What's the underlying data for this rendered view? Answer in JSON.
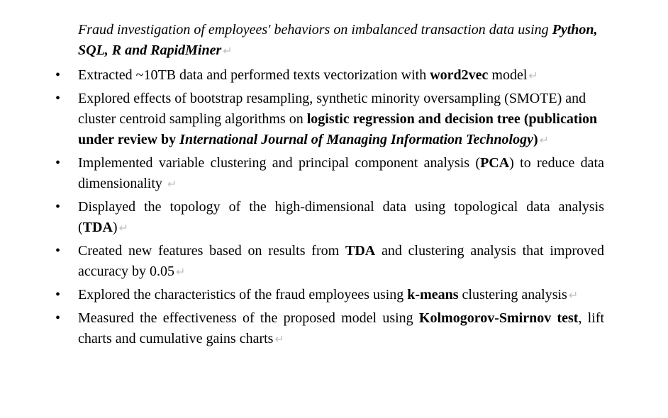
{
  "title": {
    "intro_italic": "Fraud investigation of employees' behaviors on imbalanced transaction data using ",
    "tools_bold_italic": "Python, SQL, R and RapidMiner"
  },
  "bullets": [
    {
      "justify": false,
      "runs": [
        {
          "style": "normal",
          "text": "Extracted ~10TB data and performed texts vectorization with "
        },
        {
          "style": "bold",
          "text": "word2vec"
        },
        {
          "style": "normal",
          "text": " model"
        }
      ]
    },
    {
      "justify": false,
      "runs": [
        {
          "style": "normal",
          "text": "Explored effects of bootstrap resampling, synthetic minority oversampling (SMOTE) and cluster centroid sampling algorithms on "
        },
        {
          "style": "bold",
          "text": "logistic regression and decision tree (publication under review by "
        },
        {
          "style": "bold-italic",
          "text": "International Journal of Managing Information Technology"
        },
        {
          "style": "bold",
          "text": ")"
        }
      ]
    },
    {
      "justify": true,
      "runs": [
        {
          "style": "normal",
          "text": "Implemented variable clustering and principal component analysis ("
        },
        {
          "style": "bold",
          "text": "PCA"
        },
        {
          "style": "normal",
          "text": ") to reduce data dimensionality "
        }
      ]
    },
    {
      "justify": true,
      "runs": [
        {
          "style": "normal",
          "text": "Displayed the topology of the high-dimensional data using topological data analysis ("
        },
        {
          "style": "bold",
          "text": "TDA"
        },
        {
          "style": "normal",
          "text": ")"
        }
      ]
    },
    {
      "justify": true,
      "runs": [
        {
          "style": "normal",
          "text": "Created new features based on results from "
        },
        {
          "style": "bold",
          "text": "TDA"
        },
        {
          "style": "normal",
          "text": " and clustering analysis that improved accuracy by 0.05"
        }
      ]
    },
    {
      "justify": true,
      "runs": [
        {
          "style": "normal",
          "text": "Explored the characteristics of the fraud employees using "
        },
        {
          "style": "bold",
          "text": "k-means"
        },
        {
          "style": "normal",
          "text": " clustering analysis"
        }
      ]
    },
    {
      "justify": true,
      "runs": [
        {
          "style": "normal",
          "text": "Measured the effectiveness of the proposed model using "
        },
        {
          "style": "bold",
          "text": "Kolmogorov-Smirnov test"
        },
        {
          "style": "normal",
          "text": ", lift charts and cumulative gains charts"
        }
      ]
    }
  ],
  "paragraph_mark": "↵"
}
